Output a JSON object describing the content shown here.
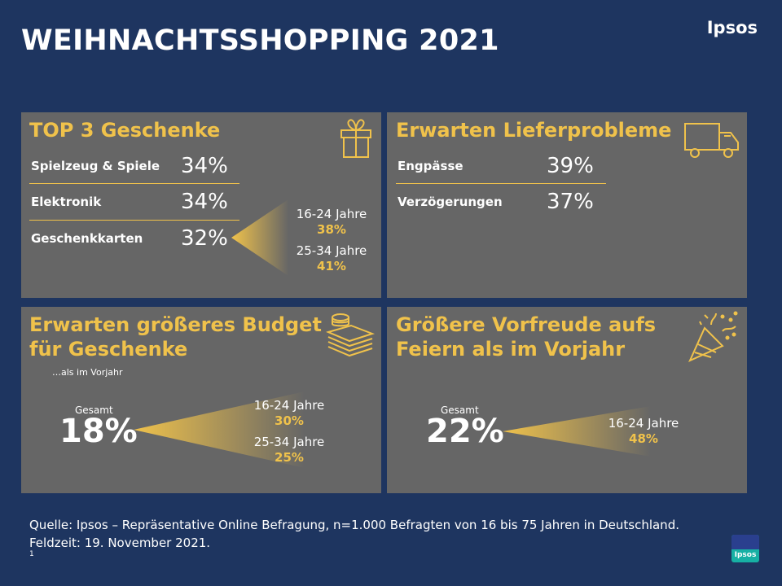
{
  "header": {
    "title": "WEIHNACHTSSHOPPING 2021",
    "brand": "Ipsos"
  },
  "panels": {
    "gifts": {
      "title": "TOP 3 Geschenke",
      "items": [
        {
          "label": "Spielzeug & Spiele",
          "value": "34%"
        },
        {
          "label": "Elektronik",
          "value": "34%"
        },
        {
          "label": "Geschenkkarten",
          "value": "32%"
        }
      ],
      "breakdown": [
        {
          "age": "16-24 Jahre",
          "value": "38%"
        },
        {
          "age": "25-34 Jahre",
          "value": "41%"
        }
      ]
    },
    "delivery": {
      "title": "Erwarten Lieferprobleme",
      "items": [
        {
          "label": "Engpässe",
          "value": "39%"
        },
        {
          "label": "Verzögerungen",
          "value": "37%"
        }
      ]
    },
    "budget": {
      "title_line1": "Erwarten größeres Budget",
      "title_line2": "für Geschenke",
      "subtitle": "…als im Vorjahr",
      "total_label": "Gesamt",
      "total_value": "18%",
      "breakdown": [
        {
          "age": "16-24 Jahre",
          "value": "30%"
        },
        {
          "age": "25-34 Jahre",
          "value": "25%"
        }
      ]
    },
    "party": {
      "title_line1": "Größere Vorfreude aufs",
      "title_line2": "Feiern als im Vorjahr",
      "total_label": "Gesamt",
      "total_value": "22%",
      "breakdown": [
        {
          "age": "16-24 Jahre",
          "value": "48%"
        }
      ]
    }
  },
  "footer": {
    "source": "Quelle: Ipsos – Repräsentative Online Befragung, n=1.000 Befragten von 16 bis 75 Jahren in Deutschland.",
    "fieldtime": "Feldzeit: 19. November 2021.",
    "page": "1",
    "logo_text": "Ipsos"
  },
  "colors": {
    "background": "#1e3560",
    "panel": "#666666",
    "accent": "#f0c24b"
  }
}
